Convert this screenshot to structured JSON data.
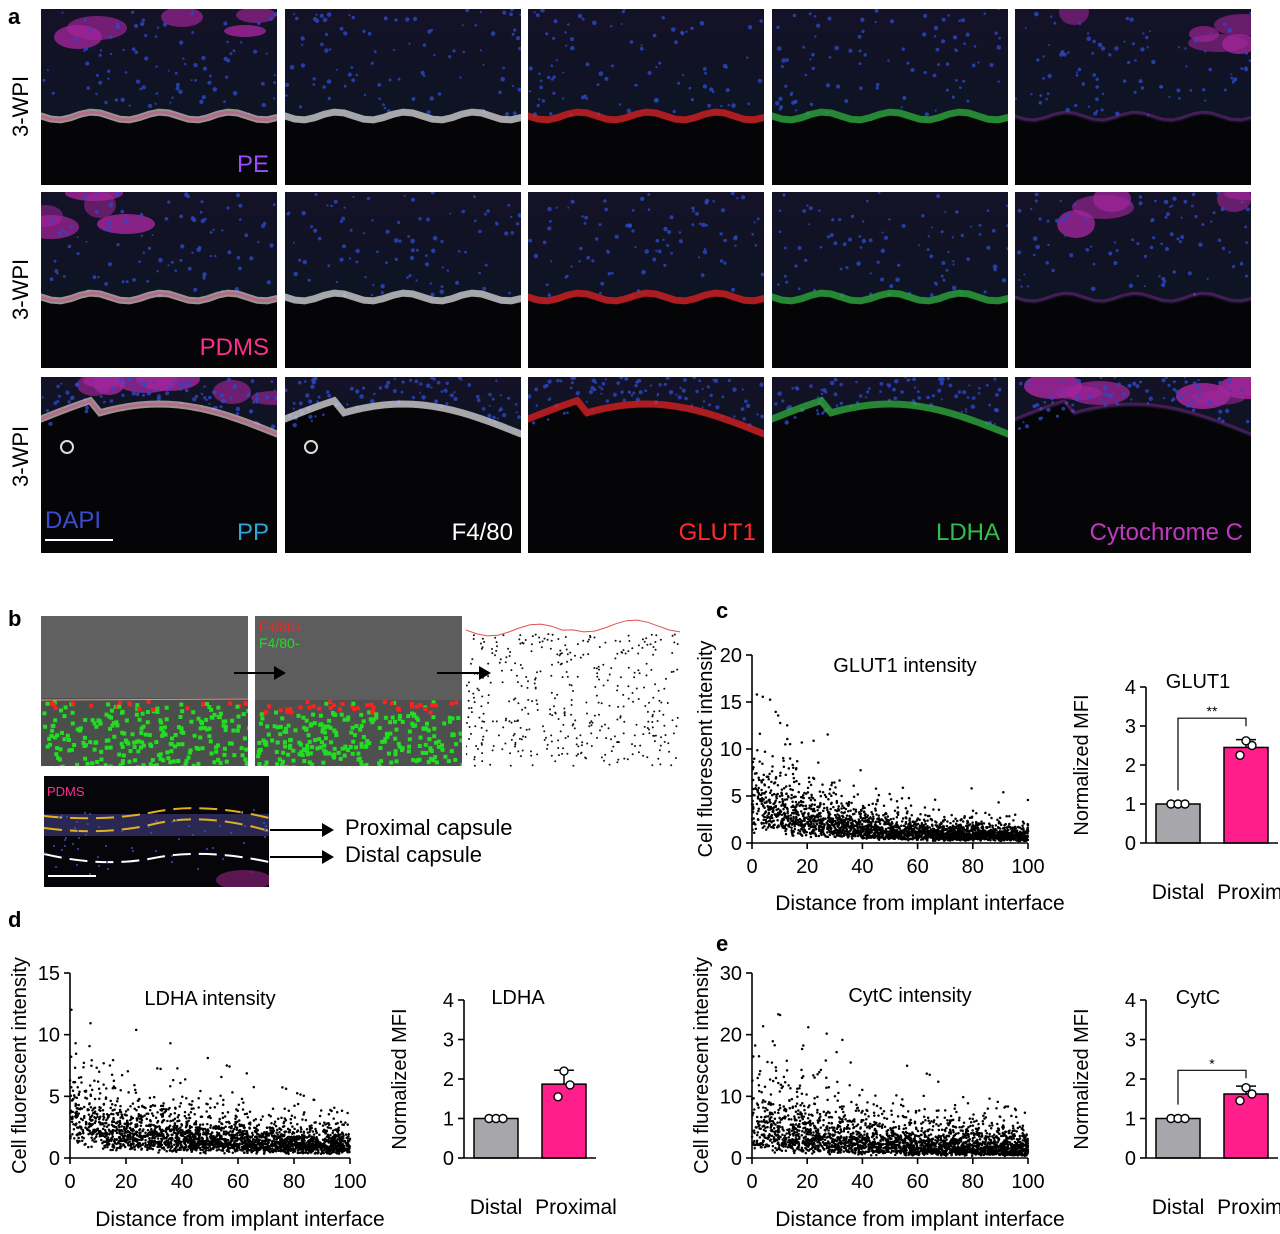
{
  "panel_letters": {
    "a": "a",
    "b": "b",
    "c": "c",
    "d": "d",
    "e": "e"
  },
  "panel_a": {
    "row_label": "3-WPI",
    "rows": [
      {
        "material": "PE",
        "material_color": "#9b4dff"
      },
      {
        "material": "PDMS",
        "material_color": "#ff2f8f"
      },
      {
        "material": "PP",
        "material_color": "#29a8e0"
      }
    ],
    "stain_labels": [
      {
        "text": "DAPI",
        "color": "#3a4dd0"
      },
      {
        "text": "F4/80",
        "color": "#ffffff"
      },
      {
        "text": "GLUT1",
        "color": "#ff2a2a"
      },
      {
        "text": "LDHA",
        "color": "#2fbf4a"
      },
      {
        "text": "Cytochrome C",
        "color": "#c03ac0"
      }
    ]
  },
  "panel_b": {
    "legend_pos": "F4/80+",
    "legend_neg": "F4/80-",
    "inset_label": "PDMS",
    "proximal": "Proximal capsule",
    "distal": "Distal capsule",
    "colors": {
      "pos": "#ff2020",
      "neg": "#22dd22"
    }
  },
  "chart_data": [
    {
      "id": "c-scatter",
      "type": "scatter",
      "title": "GLUT1 intensity",
      "xlabel": "Distance from implant interface",
      "ylabel": "Cell fluorescent intensity",
      "xlim": [
        0,
        100
      ],
      "ylim": [
        0,
        20
      ],
      "xticks": [
        0,
        20,
        40,
        60,
        80,
        100
      ],
      "yticks": [
        0,
        5,
        10,
        15,
        20
      ],
      "trend": {
        "peak": 4.5,
        "base": 0.6,
        "decay": 28,
        "spread": 0.75,
        "max": 16
      }
    },
    {
      "id": "c-bar",
      "type": "bar",
      "title": "GLUT1",
      "ylabel": "Normalized MFI",
      "categories": [
        "Distal",
        "Proximal"
      ],
      "values": [
        1.0,
        2.45
      ],
      "errors": [
        0,
        0.2
      ],
      "points": [
        [
          1.0,
          1.0,
          1.0
        ],
        [
          2.25,
          2.5,
          2.62
        ]
      ],
      "ylim": [
        0,
        4
      ],
      "yticks": [
        0,
        1,
        2,
        3,
        4
      ],
      "significance": "**"
    },
    {
      "id": "d-scatter",
      "type": "scatter",
      "title": "LDHA intensity",
      "xlabel": "Distance from implant interface",
      "ylabel": "Cell fluorescent intensity",
      "xlim": [
        0,
        100
      ],
      "ylim": [
        0,
        15
      ],
      "xticks": [
        0,
        20,
        40,
        60,
        80,
        100
      ],
      "yticks": [
        0,
        5,
        10,
        15
      ],
      "trend": {
        "peak": 3.2,
        "base": 1.0,
        "decay": 30,
        "spread": 0.7,
        "max": 12.5
      }
    },
    {
      "id": "d-bar",
      "type": "bar",
      "title": "LDHA",
      "ylabel": "Normalized MFI",
      "categories": [
        "Distal",
        "Proximal"
      ],
      "values": [
        1.0,
        1.87
      ],
      "errors": [
        0,
        0.35
      ],
      "points": [
        [
          1.0,
          1.0,
          1.0
        ],
        [
          1.55,
          1.85,
          2.2
        ]
      ],
      "ylim": [
        0,
        4
      ],
      "yticks": [
        0,
        1,
        2,
        3,
        4
      ],
      "significance": ""
    },
    {
      "id": "e-scatter",
      "type": "scatter",
      "title": "CytC intensity",
      "xlabel": "Distance from implant interface",
      "ylabel": "Cell fluorescent intensity",
      "xlim": [
        0,
        100
      ],
      "ylim": [
        0,
        30
      ],
      "xticks": [
        0,
        20,
        40,
        60,
        80,
        100
      ],
      "yticks": [
        0,
        10,
        20,
        30
      ],
      "trend": {
        "peak": 5.5,
        "base": 1.5,
        "decay": 30,
        "spread": 0.9,
        "max": 25
      }
    },
    {
      "id": "e-bar",
      "type": "bar",
      "title": "CytC",
      "ylabel": "Normalized MFI",
      "categories": [
        "Distal",
        "Proximal"
      ],
      "values": [
        1.0,
        1.62
      ],
      "errors": [
        0,
        0.2
      ],
      "points": [
        [
          1.0,
          1.0,
          1.0
        ],
        [
          1.45,
          1.62,
          1.78
        ]
      ],
      "ylim": [
        0,
        4
      ],
      "yticks": [
        0,
        1,
        2,
        3,
        4
      ],
      "significance": "*"
    }
  ],
  "colors": {
    "distal_bar": "#a7a7ab",
    "proximal_bar": "#ff1e8c"
  }
}
